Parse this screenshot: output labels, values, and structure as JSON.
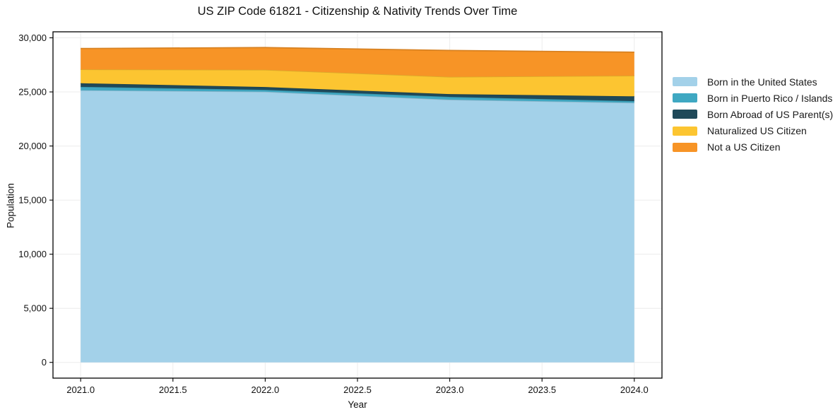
{
  "chart_data": {
    "type": "area",
    "stacked": true,
    "title": "US ZIP Code 61821 - Citizenship & Nativity Trends Over Time",
    "xlabel": "Year",
    "ylabel": "Population",
    "x": [
      2021,
      2022,
      2023,
      2024
    ],
    "series": [
      {
        "name": "Born in the United States",
        "color": "#a3d1e9",
        "values": [
          25150,
          25020,
          24280,
          24000
        ]
      },
      {
        "name": "Born in Puerto Rico / Islands",
        "color": "#3fa8c2",
        "values": [
          320,
          170,
          260,
          150
        ]
      },
      {
        "name": "Born Abroad of US Parent(s)",
        "color": "#1f4959",
        "values": [
          330,
          260,
          260,
          440
        ]
      },
      {
        "name": "Naturalized US Citizen",
        "color": "#fcc531",
        "values": [
          1280,
          1590,
          1590,
          1910
        ]
      },
      {
        "name": "Not a US Citizen",
        "color": "#f79426",
        "values": [
          1930,
          2060,
          2440,
          2170
        ]
      }
    ],
    "stack_totals": [
      29010,
      29100,
      28830,
      28670
    ],
    "xlim": [
      2020.85,
      2024.15
    ],
    "ylim": [
      -1455,
      30555
    ],
    "xticks": {
      "values": [
        2021,
        2021.5,
        2022,
        2022.5,
        2023,
        2023.5,
        2024
      ],
      "labels": [
        "2021.0",
        "2021.5",
        "2022.0",
        "2022.5",
        "2023.0",
        "2023.5",
        "2024.0"
      ]
    },
    "yticks": {
      "values": [
        0,
        5000,
        10000,
        15000,
        20000,
        25000,
        30000
      ],
      "labels": [
        "0",
        "5,000",
        "10,000",
        "15,000",
        "20,000",
        "25,000",
        "30,000"
      ]
    },
    "grid": true,
    "grid_color": "#ececec",
    "axis_color": "#000000",
    "text_color": "#111111",
    "legend_position": "right"
  }
}
